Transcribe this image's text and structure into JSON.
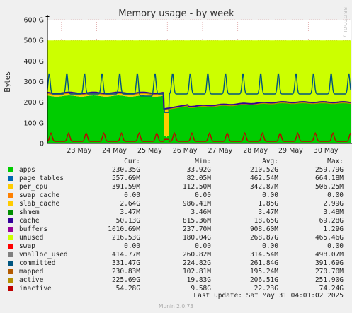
{
  "chart_data": {
    "type": "area",
    "title": "Memory usage - by week",
    "ylabel": "Bytes",
    "side_label": "RRDTOOL / TOBI OETIKER",
    "y_ticks": [
      "0",
      "100 G",
      "200 G",
      "300 G",
      "400 G",
      "500 G",
      "600 G"
    ],
    "ylim": [
      0,
      600
    ],
    "x_ticks": [
      "23 May",
      "24 May",
      "25 May",
      "26 May",
      "27 May",
      "28 May",
      "29 May",
      "30 May"
    ],
    "xlim_days": [
      22.6,
      31.2
    ],
    "grid": true,
    "series_summary": {
      "stack_total_G": 500,
      "apps_base_G": 230,
      "apps_dip_G": 34,
      "inactive_base_G": 10,
      "inactive_peak_G": 50,
      "committed_base_G": 240,
      "committed_peak_G": 340
    }
  },
  "legend": {
    "headers": {
      "cur": "Cur:",
      "min": "Min:",
      "avg": "Avg:",
      "max": "Max:"
    },
    "rows": [
      {
        "name": "apps",
        "color": "#00cc00",
        "cur": "230.35G",
        "min": "33.92G",
        "avg": "210.52G",
        "max": "259.79G"
      },
      {
        "name": "page_tables",
        "color": "#0066b3",
        "cur": "557.69M",
        "min": "82.05M",
        "avg": "462.54M",
        "max": "664.18M"
      },
      {
        "name": "per_cpu",
        "color": "#ffcc00",
        "cur": "391.59M",
        "min": "112.50M",
        "avg": "342.87M",
        "max": "506.25M"
      },
      {
        "name": "swap_cache",
        "color": "#ff8000",
        "cur": "0.00",
        "min": "0.00",
        "avg": "0.00",
        "max": "0.00"
      },
      {
        "name": "slab_cache",
        "color": "#ffcc00",
        "cur": "2.64G",
        "min": "986.41M",
        "avg": "1.85G",
        "max": "2.99G"
      },
      {
        "name": "shmem",
        "color": "#008f00",
        "cur": "3.47M",
        "min": "3.46M",
        "avg": "3.47M",
        "max": "3.48M"
      },
      {
        "name": "cache",
        "color": "#330099",
        "cur": "50.13G",
        "min": "815.36M",
        "avg": "18.65G",
        "max": "69.28G"
      },
      {
        "name": "buffers",
        "color": "#990099",
        "cur": "1010.69M",
        "min": "237.70M",
        "avg": "908.60M",
        "max": "1.29G"
      },
      {
        "name": "unused",
        "color": "#ccff00",
        "cur": "216.53G",
        "min": "180.04G",
        "avg": "268.87G",
        "max": "465.46G"
      },
      {
        "name": "swap",
        "color": "#ff0000",
        "cur": "0.00",
        "min": "0.00",
        "avg": "0.00",
        "max": "0.00"
      },
      {
        "name": "vmalloc_used",
        "color": "#808080",
        "cur": "414.77M",
        "min": "260.82M",
        "avg": "314.54M",
        "max": "498.07M"
      },
      {
        "name": "committed",
        "color": "#005580",
        "cur": "331.47G",
        "min": "224.82G",
        "avg": "261.84G",
        "max": "391.69G"
      },
      {
        "name": "mapped",
        "color": "#b35a00",
        "cur": "230.83M",
        "min": "102.81M",
        "avg": "195.24M",
        "max": "270.70M"
      },
      {
        "name": "active",
        "color": "#b38f00",
        "cur": "225.69G",
        "min": "19.83G",
        "avg": "206.51G",
        "max": "251.90G"
      },
      {
        "name": "inactive",
        "color": "#bf0000",
        "cur": "54.28G",
        "min": "9.58G",
        "avg": "22.23G",
        "max": "74.24G"
      }
    ]
  },
  "footer": {
    "last_update": "Last update:  Sat May 31 04:01:02 2025",
    "munin_version": "Munin 2.0.73"
  }
}
